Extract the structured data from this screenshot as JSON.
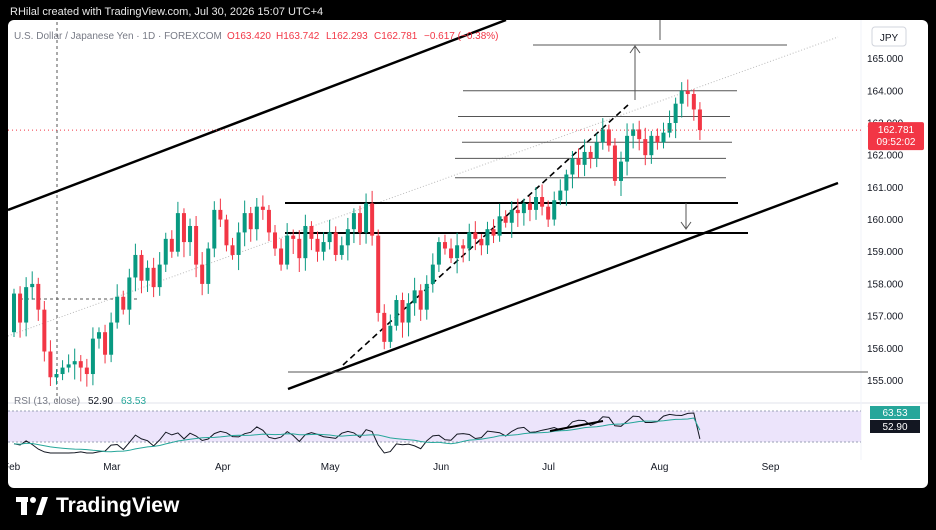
{
  "header": {
    "credit": "RHilal created with TradingView.com, Jul 30, 2026 15:07 UTC+4"
  },
  "legend": {
    "symbol": "U.S. Dollar / Japanese Yen · 1D · FOREXCOM",
    "open": "O163.420",
    "high": "H163.742",
    "low": "L162.293",
    "close": "C162.781",
    "change": "−0.617 (−0.38%)"
  },
  "currency_badge": "JPY",
  "price_label": {
    "value": "162.781",
    "countdown": "09:52:02"
  },
  "rsi": {
    "label": "RSI (13, close)",
    "value": "52.90",
    "ma": "63.53"
  },
  "footer": {
    "brand": "TradingView"
  },
  "colors": {
    "up": "#089981",
    "down": "#f23645",
    "rsi_line": "#131722",
    "rsi_ma": "#26a69a",
    "rsi_band": "#ece4fb"
  },
  "chart_data": {
    "type": "candlestick",
    "title": "U.S. Dollar / Japanese Yen · 1D · FOREXCOM",
    "ylim": [
      154.3,
      166.2
    ],
    "y_ticks": [
      "165.000",
      "164.000",
      "163.000",
      "162.000",
      "161.000",
      "160.000",
      "159.000",
      "158.000",
      "157.000",
      "156.000",
      "155.000"
    ],
    "x_ticks": [
      "Feb",
      "Mar",
      "Apr",
      "May",
      "Jun",
      "Jul",
      "Aug",
      "Sep"
    ],
    "x_ticks_days": [
      0,
      28,
      59,
      89,
      120,
      150,
      181,
      212
    ],
    "candles": [
      [
        163.4,
        163.74,
        162.29,
        162.78
      ]
    ],
    "horizontal_levels": [
      164.0,
      163.2,
      162.4,
      161.9,
      161.3,
      160.55,
      159.55,
      155.0
    ],
    "rsi": {
      "ylim": [
        30,
        90
      ],
      "levels": [
        40,
        80
      ],
      "last": 52.9,
      "ma_last": 63.53
    }
  }
}
